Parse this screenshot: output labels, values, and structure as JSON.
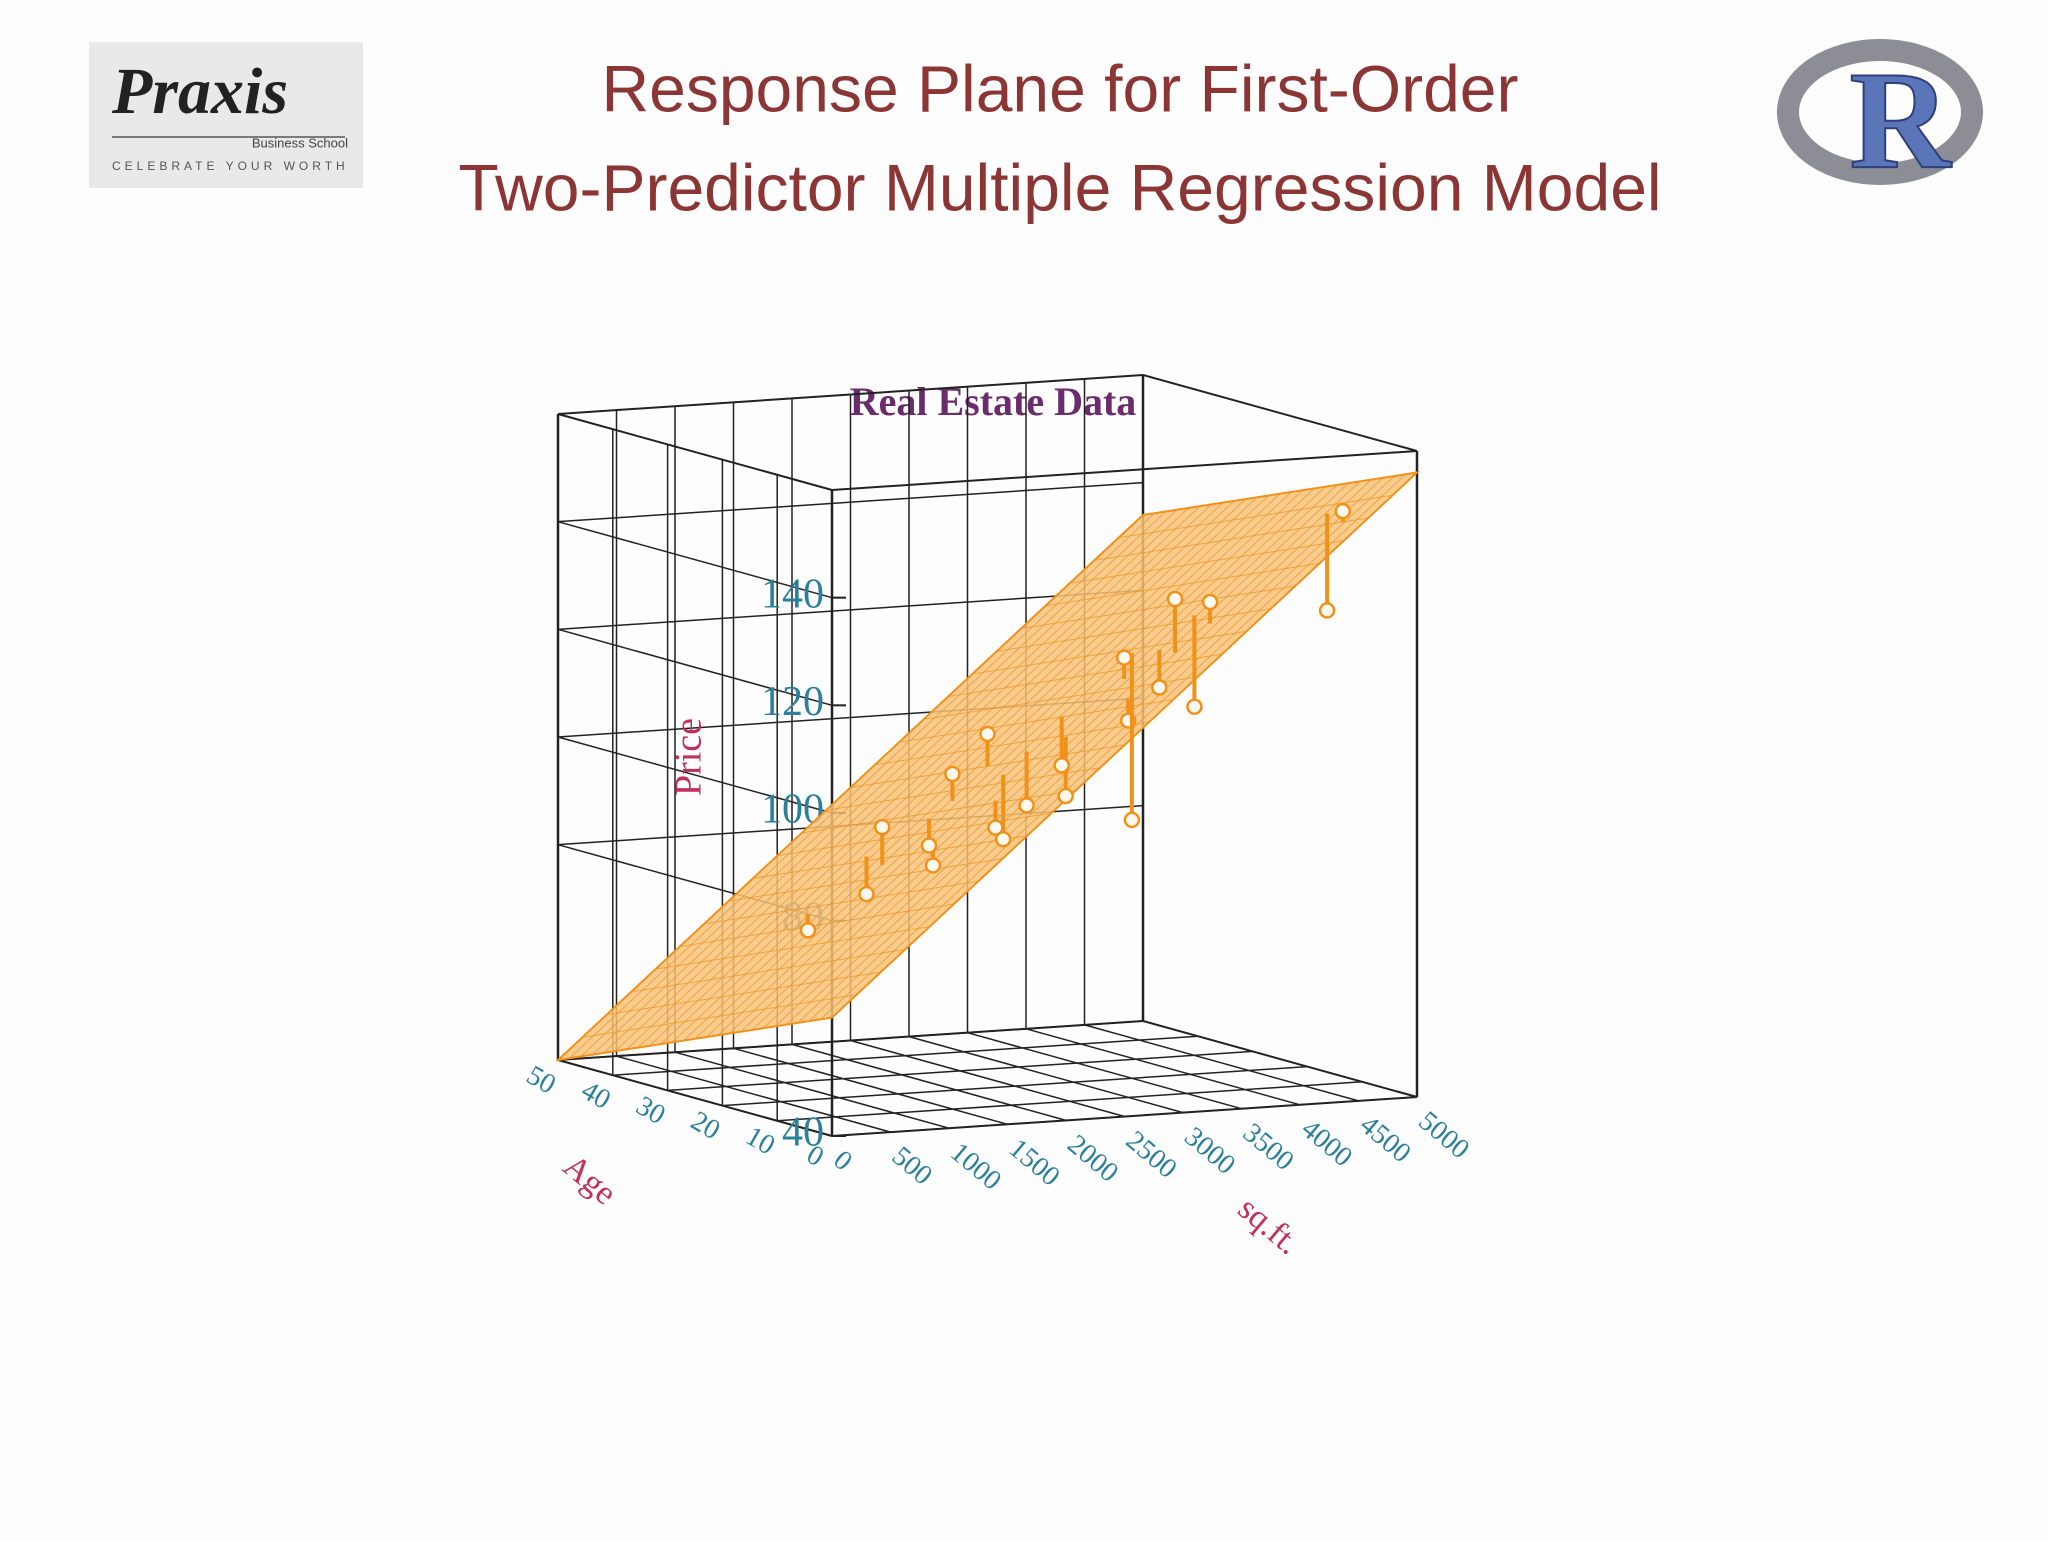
{
  "header": {
    "title_lines": [
      "Response Plane for First-Order",
      "Two-Predictor Multiple Regression Model"
    ],
    "logo_left": {
      "name": "Praxis",
      "subtitle": "Business School",
      "tagline": "CELEBRATE YOUR WORTH"
    },
    "logo_right": "R"
  },
  "chart_data": {
    "type": "scatter3d",
    "title": "Real Estate Data",
    "xlabel": "sq.ft.",
    "ylabel": "Age",
    "zlabel": "Price",
    "xlim": [
      0,
      5000
    ],
    "xticks": [
      0,
      500,
      1000,
      1500,
      2000,
      2500,
      3000,
      3500,
      4000,
      4500,
      5000
    ],
    "ylim": [
      0,
      50
    ],
    "yticks": [
      0,
      10,
      20,
      30,
      40,
      50
    ],
    "zlim": [
      40,
      160
    ],
    "zticks": [
      40,
      80,
      100,
      120,
      140
    ],
    "x": [
      1200,
      1600,
      1700,
      1800,
      2000,
      2100,
      2200,
      2400,
      2500,
      2600,
      2700,
      2900,
      3000,
      3200,
      3400,
      3500,
      3500,
      3700,
      3800,
      4600,
      4700
    ],
    "y": [
      30,
      25,
      30,
      20,
      25,
      15,
      25,
      20,
      25,
      20,
      15,
      20,
      10,
      15,
      10,
      15,
      20,
      10,
      15,
      5,
      10
    ],
    "z": [
      68,
      88,
      74,
      82,
      84,
      90,
      97,
      86,
      104,
      92,
      95,
      99,
      110,
      120,
      132,
      114,
      88,
      131,
      110,
      148,
      128
    ],
    "fitted": [
      71,
      81,
      81,
      87,
      89,
      95,
      92,
      98,
      98,
      102,
      106,
      108,
      114,
      116,
      122,
      121,
      119,
      127,
      127,
      146,
      146
    ],
    "surface_z": [
      [
        62,
        156
      ],
      [
        40,
        134
      ]
    ],
    "color": "#f0921a",
    "surface_color": "#f7c27a",
    "grid": true
  }
}
